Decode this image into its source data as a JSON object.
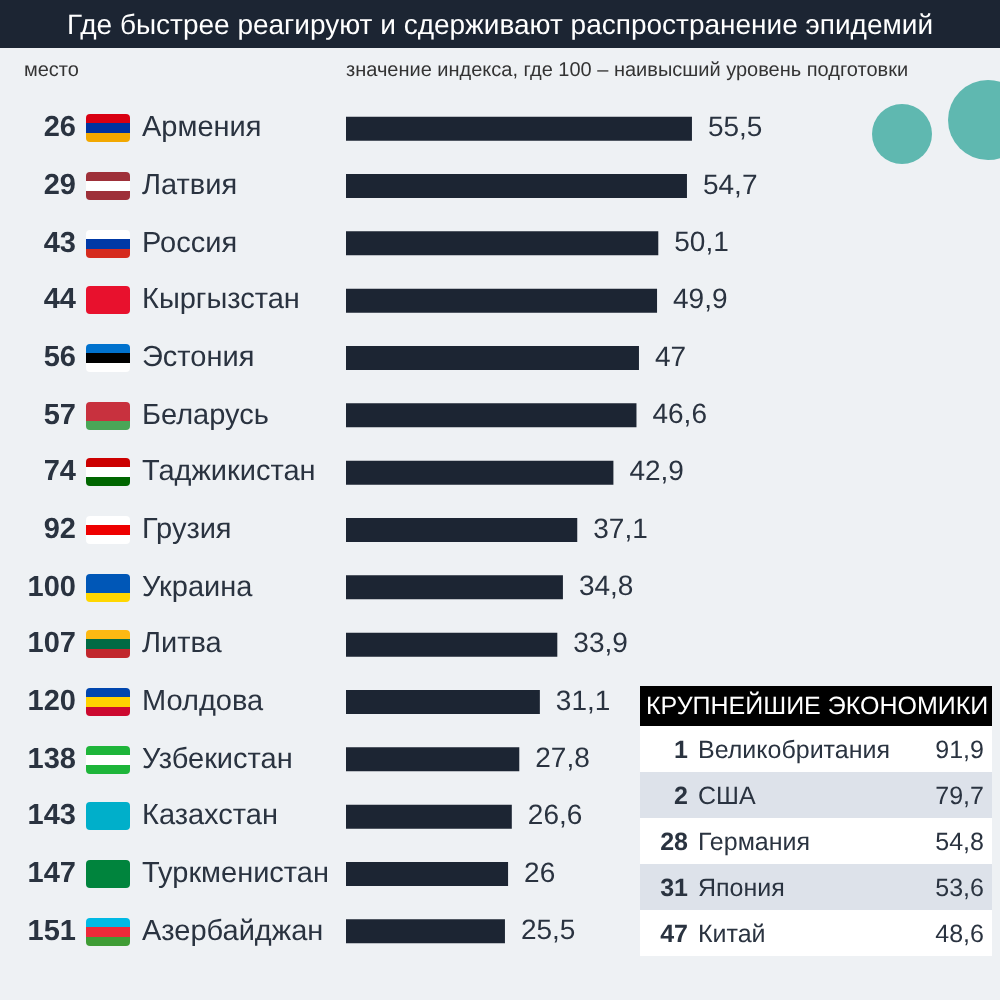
{
  "chart_data": [
    {
      "type": "bar",
      "orientation": "horizontal",
      "title": "Где быстрее реагируют и сдерживают распространение эпидемий",
      "annotations": [
        "место",
        "значение индекса,  где 100 – наивысший уровень подготовки"
      ],
      "categories": [
        "26 Армения",
        "29 Латвия",
        "43 Россия",
        "44 Кыргызстан",
        "56 Эстония",
        "57 Беларусь",
        "74 Таджикистан",
        "92 Грузия",
        "100 Украина",
        "107 Литва",
        "120 Молдова",
        "138 Узбекистан",
        "143 Казахстан",
        "147 Туркменистан",
        "151 Азербайджан"
      ],
      "values": [
        55.5,
        54.7,
        50.1,
        49.9,
        47,
        46.6,
        42.9,
        37.1,
        34.8,
        33.9,
        31.1,
        27.8,
        26.6,
        26,
        25.5
      ],
      "color": "#1c2533",
      "value_labels": [
        "55,5",
        "54,7",
        "50,1",
        "49,9",
        "47",
        "46,6",
        "42,9",
        "37,1",
        "34,8",
        "33,9",
        "31,1",
        "27,8",
        "26,6",
        "26",
        "25,5"
      ]
    },
    {
      "type": "other",
      "title": "КРУПНЕЙШИЕ ЭКОНОМИКИ",
      "categories": [
        "1 Великобритания",
        "2 США",
        "28 Германия",
        "31 Япония",
        "47 Китай"
      ],
      "values": [
        91.9,
        79.7,
        54.8,
        53.6,
        48.6
      ],
      "value_labels": [
        "91,9",
        "79,7",
        "54,8",
        "53,6",
        "48,6"
      ]
    }
  ]
}
